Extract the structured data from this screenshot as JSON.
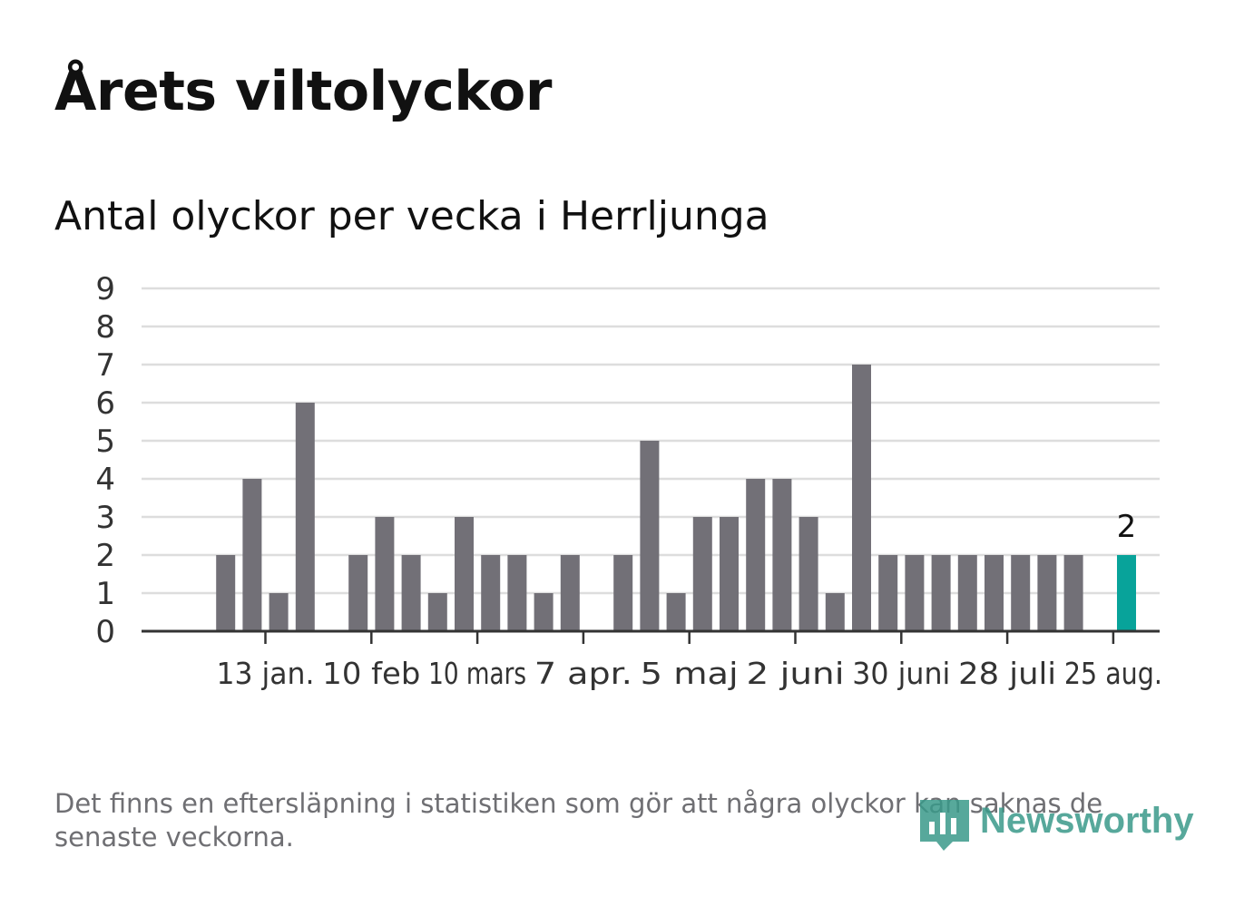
{
  "title": "Årets viltolyckor",
  "subtitle": "Antal olyckor per vecka i Herrljunga",
  "footnote": "Det finns en eftersläpning i statistiken som gör att några olyckor kan saknas de senaste veckorna.",
  "brand": "Newsworthy",
  "colors": {
    "bar": "#727077",
    "highlight": "#08a39a",
    "grid": "#dddddd",
    "axis": "#333333",
    "brand": "#3a9a8a"
  },
  "chart_data": {
    "type": "bar",
    "title": "Antal olyckor per vecka i Herrljunga",
    "ylim": [
      0,
      9
    ],
    "yticks": [
      0,
      1,
      2,
      3,
      4,
      5,
      6,
      7,
      8,
      9
    ],
    "grid": true,
    "x_tick_labels": [
      "13 jan.",
      "10 feb",
      "10 mars",
      "7 apr.",
      "5 maj",
      "2 juni",
      "30 juni",
      "28 juli",
      "25 aug."
    ],
    "x_tick_weeks": [
      3,
      7,
      11,
      15,
      19,
      23,
      27,
      31,
      35
    ],
    "weeks": [
      1,
      2,
      3,
      4,
      5,
      6,
      7,
      8,
      9,
      10,
      11,
      12,
      13,
      14,
      15,
      16,
      17,
      18,
      19,
      20,
      21,
      22,
      23,
      24,
      25,
      26,
      27,
      28,
      29,
      30,
      31,
      32,
      33,
      34,
      35,
      36
    ],
    "values": [
      0,
      2,
      4,
      1,
      6,
      0,
      2,
      3,
      2,
      1,
      3,
      2,
      2,
      1,
      2,
      0,
      2,
      5,
      1,
      3,
      3,
      4,
      4,
      3,
      1,
      7,
      2,
      2,
      2,
      2,
      2,
      2,
      2,
      2,
      0,
      2
    ],
    "highlight_index": 35,
    "highlight_label": "2"
  }
}
